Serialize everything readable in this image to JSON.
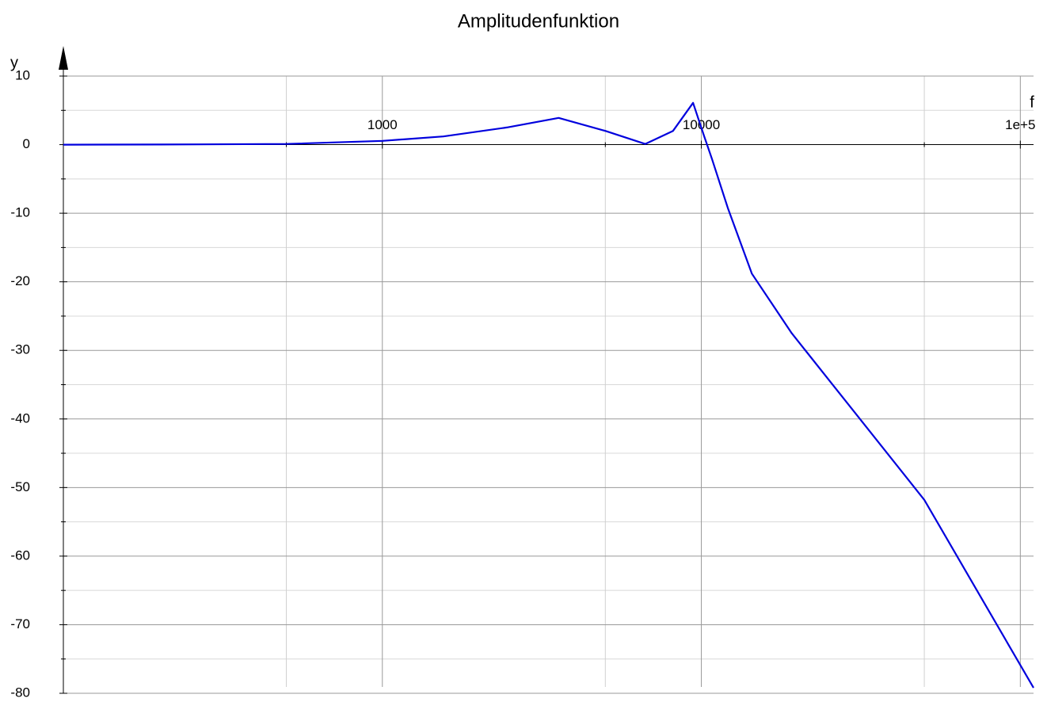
{
  "chart_data": {
    "type": "line",
    "title": "Amplitudenfunktion",
    "x_label": "f",
    "y_label": "y",
    "x_scale": "log",
    "grid": true,
    "xlim": [
      100,
      110000
    ],
    "ylim": [
      -80,
      10
    ],
    "xticks": [
      1000,
      10000,
      {
        "value": 100000,
        "label": "1e+5"
      }
    ],
    "xgrid_minor": [
      500,
      5000,
      50000
    ],
    "yticks": [
      -80,
      -70,
      -60,
      -50,
      -40,
      -30,
      -20,
      -10,
      0,
      10
    ],
    "ygrid_minor": [
      -75,
      -65,
      -55,
      -45,
      -35,
      -25,
      -15,
      -5,
      5
    ],
    "series": [
      {
        "color": "#0000dd",
        "x": [
          100,
          200,
          500,
          1000,
          1553,
          2454,
          3570,
          5000,
          6668,
          8150,
          9420,
          10210,
          10800,
          12100,
          14400,
          19200,
          25500,
          50000,
          110000
        ],
        "values": [
          0,
          0.02,
          0.1,
          0.55,
          1.2,
          2.5,
          3.9,
          2.0,
          0.1,
          2.0,
          6.1,
          1.2,
          -2.1,
          -9.2,
          -18.8,
          -27.5,
          -34.7,
          -51.8,
          -79.2
        ]
      }
    ]
  }
}
